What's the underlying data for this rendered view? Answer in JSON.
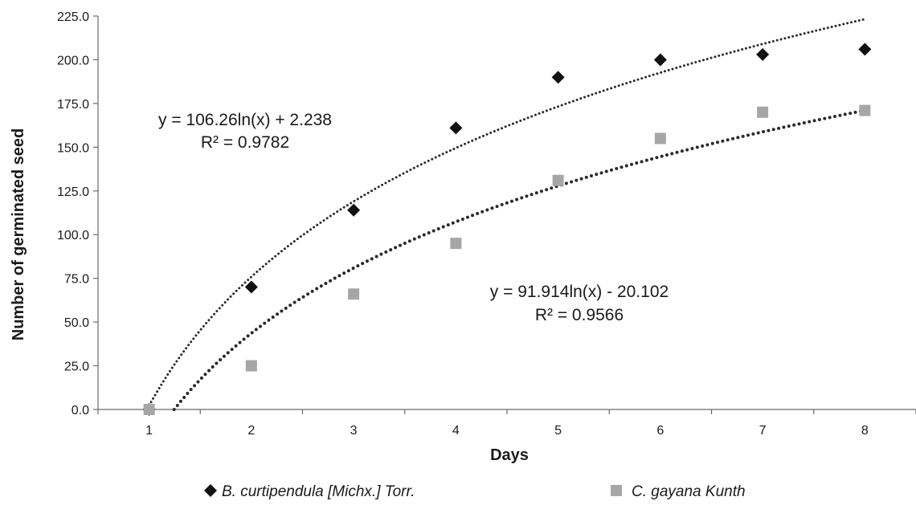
{
  "chart_data": {
    "type": "scatter",
    "xlabel": "Days",
    "ylabel": "Number of germinated seed",
    "xlim": [
      0.5,
      8.5
    ],
    "ylim": [
      0,
      225
    ],
    "x_ticks": [
      1,
      2,
      3,
      4,
      5,
      6,
      7,
      8
    ],
    "y_ticks": [
      "0.0",
      "25.0",
      "50.0",
      "75.0",
      "100.0",
      "125.0",
      "150.0",
      "175.0",
      "200.0",
      "225.0"
    ],
    "grid": false,
    "legend_position": "bottom",
    "series": [
      {
        "name": "B. curtipendula [Michx.] Torr.",
        "marker": "diamond",
        "color": "#111111",
        "x": [
          1,
          2,
          3,
          4,
          5,
          6,
          7,
          8
        ],
        "y": [
          0,
          70,
          114,
          161,
          190,
          200,
          203,
          206
        ],
        "trendline": {
          "type": "log",
          "a": 106.26,
          "b": 2.238,
          "equation": "y = 106.26ln(x) + 2.238",
          "r2": "R² = 0.9782",
          "color": "#2a2a2a"
        }
      },
      {
        "name": "C. gayana Kunth",
        "marker": "square",
        "color": "#a6a6a6",
        "x": [
          1,
          2,
          3,
          4,
          5,
          6,
          7,
          8
        ],
        "y": [
          0,
          25,
          66,
          95,
          131,
          155,
          170,
          171
        ],
        "trendline": {
          "type": "log",
          "a": 91.914,
          "b": -20.102,
          "equation": "y = 91.914ln(x) - 20.102",
          "r2": "R² = 0.9566",
          "color": "#2a2a2a"
        }
      }
    ]
  }
}
